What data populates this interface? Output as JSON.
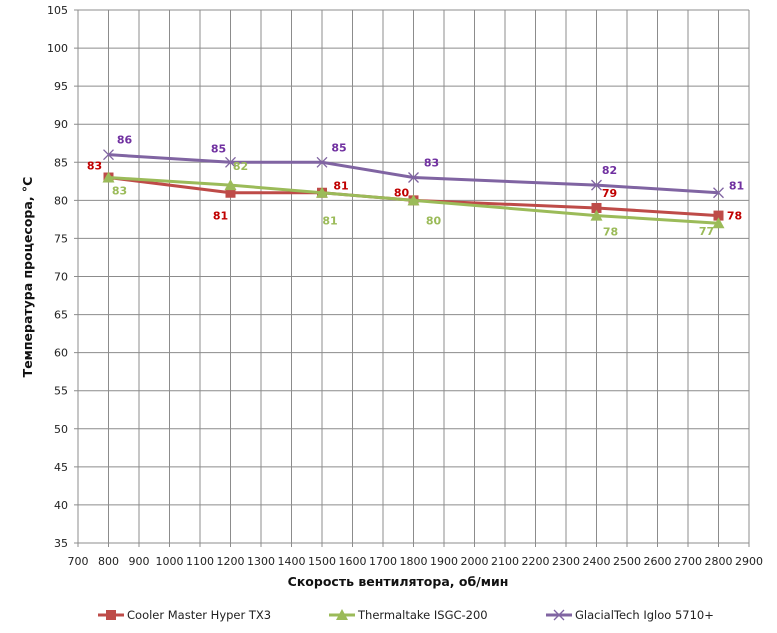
{
  "chart_data": {
    "type": "line",
    "title": "",
    "xlabel": "Скорость вентилятора, об/мин",
    "ylabel": "Температура процесора, °C",
    "xlim": [
      700,
      2900
    ],
    "ylim": [
      35,
      105
    ],
    "xticks": [
      700,
      800,
      900,
      1000,
      1100,
      1200,
      1300,
      1400,
      1500,
      1600,
      1700,
      1800,
      1900,
      2000,
      2100,
      2200,
      2300,
      2400,
      2500,
      2600,
      2700,
      2800,
      2900
    ],
    "yticks": [
      35,
      40,
      45,
      50,
      55,
      60,
      65,
      70,
      75,
      80,
      85,
      90,
      95,
      100,
      105
    ],
    "grid": true,
    "legend": "bottom",
    "x": [
      800,
      1200,
      1500,
      1800,
      2400,
      2800
    ],
    "series": [
      {
        "name": "Cooler Master Hyper TX3",
        "values": [
          83,
          81,
          81,
          80,
          79,
          78
        ],
        "color": "#be4b48",
        "label_color": "#c00000",
        "marker": "square"
      },
      {
        "name": "Thermaltake ISGC-200",
        "values": [
          83,
          82,
          81,
          80,
          78,
          77
        ],
        "color": "#9bbb59",
        "label_color": "#9bbb59",
        "marker": "triangle"
      },
      {
        "name": "GlacialTech Igloo 5710+",
        "values": [
          86,
          85,
          85,
          83,
          82,
          81
        ],
        "color": "#8064a2",
        "label_color": "#7030a0",
        "marker": "x"
      }
    ]
  }
}
